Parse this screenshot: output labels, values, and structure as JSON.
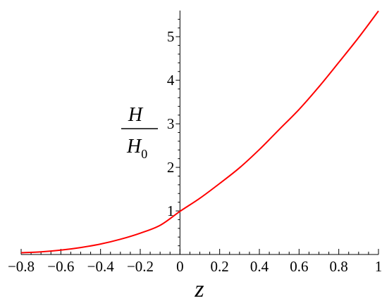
{
  "chart_data": {
    "type": "line",
    "title": "",
    "xlabel": "z",
    "ylabel": {
      "numerator": "H",
      "denominator": "H",
      "denominator_subscript": "0"
    },
    "xlim": [
      -0.8,
      1
    ],
    "ylim": [
      0,
      5.6
    ],
    "x_ticks": [
      -0.8,
      -0.6,
      -0.4,
      -0.2,
      0,
      0.2,
      0.4,
      0.6,
      0.8,
      1
    ],
    "x_tick_labels": [
      "−0.8",
      "−0.6",
      "−0.4",
      "−0.2",
      "0",
      "0.2",
      "0.4",
      "0.6",
      "0.8",
      "1"
    ],
    "y_ticks": [
      1,
      2,
      3,
      4,
      5
    ],
    "y_tick_labels": [
      "1",
      "2",
      "3",
      "4",
      "5"
    ],
    "grid": false,
    "series": [
      {
        "color": "#ff0000",
        "x": [
          -0.8,
          -0.7,
          -0.6,
          -0.5,
          -0.4,
          -0.3,
          -0.2,
          -0.1,
          0,
          0.1,
          0.2,
          0.3,
          0.4,
          0.5,
          0.6,
          0.7,
          0.8,
          0.9,
          1.0
        ],
        "y": [
          0.04,
          0.06,
          0.1,
          0.16,
          0.24,
          0.35,
          0.49,
          0.67,
          0.99,
          1.29,
          1.63,
          1.99,
          2.41,
          2.87,
          3.33,
          3.85,
          4.41,
          4.98,
          5.59
        ]
      }
    ]
  }
}
